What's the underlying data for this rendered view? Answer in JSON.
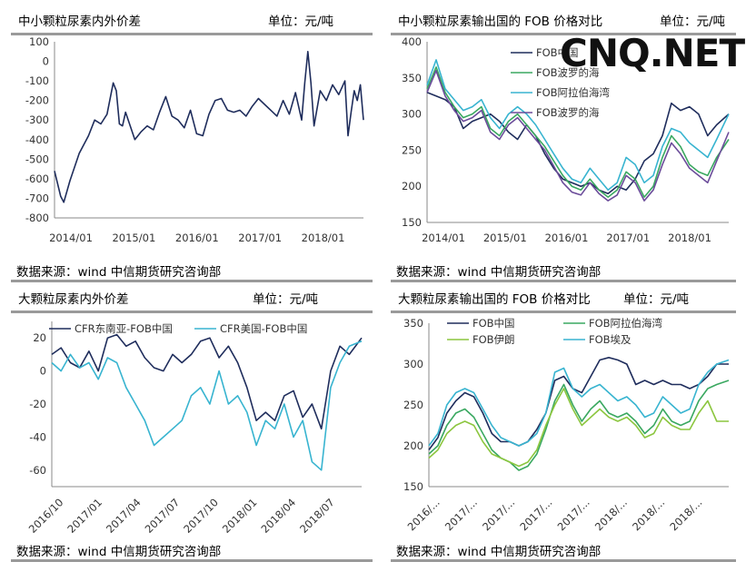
{
  "watermark": "CNQ.NET",
  "charts": [
    {
      "title": "中小颗粒尿素内外价差",
      "unit": "单位：元/吨",
      "source": "数据来源：wind  中信期货研究咨询部"
    },
    {
      "title": "中小颗粒尿素输出国的 FOB 价格对比",
      "unit": "单位：元/吨",
      "source": "数据来源：wind  中信期货研究咨询部"
    },
    {
      "title": "大颗粒尿素内外价差",
      "unit": "单位：元/吨",
      "source": "数据来源：wind  中信期货研究咨询部"
    },
    {
      "title": "大颗粒尿素输出国的 FOB 价格对比",
      "unit": "单位：元/吨",
      "source": "数据来源：wind  中信期货研究咨询部"
    }
  ],
  "chart_data": [
    {
      "type": "line",
      "ylim": [
        -800,
        100
      ],
      "yticks": [
        100,
        0,
        -100,
        -200,
        -300,
        -400,
        -500,
        -600,
        -700,
        -800
      ],
      "xticks": [
        "2014/01",
        "2015/01",
        "2016/01",
        "2017/01",
        "2018/01"
      ],
      "x": [
        0,
        0.02,
        0.03,
        0.05,
        0.08,
        0.11,
        0.13,
        0.15,
        0.17,
        0.19,
        0.2,
        0.21,
        0.22,
        0.23,
        0.26,
        0.28,
        0.3,
        0.32,
        0.34,
        0.36,
        0.38,
        0.4,
        0.42,
        0.44,
        0.46,
        0.48,
        0.5,
        0.52,
        0.54,
        0.56,
        0.58,
        0.6,
        0.62,
        0.64,
        0.66,
        0.68,
        0.7,
        0.72,
        0.74,
        0.76,
        0.78,
        0.8,
        0.81,
        0.82,
        0.83,
        0.84,
        0.86,
        0.88,
        0.9,
        0.92,
        0.94,
        0.95,
        0.96,
        0.97,
        0.98,
        0.99,
        1.0
      ],
      "series": [
        {
          "color": "#1f2d5c",
          "values": [
            -560,
            -690,
            -720,
            -610,
            -470,
            -380,
            -300,
            -320,
            -270,
            -110,
            -150,
            -320,
            -330,
            -260,
            -400,
            -360,
            -330,
            -350,
            -260,
            -180,
            -280,
            -300,
            -340,
            -250,
            -370,
            -380,
            -270,
            -200,
            -190,
            -250,
            -260,
            -250,
            -280,
            -230,
            -190,
            -220,
            -250,
            -280,
            -200,
            -270,
            -160,
            -300,
            -110,
            50,
            -110,
            -330,
            -150,
            -200,
            -120,
            -170,
            -100,
            -380,
            -260,
            -150,
            -200,
            -120,
            -300
          ]
        }
      ]
    },
    {
      "type": "line",
      "ylim": [
        150,
        400
      ],
      "yticks": [
        400,
        350,
        300,
        250,
        200,
        150
      ],
      "xticks": [
        "2014/01",
        "2015/01",
        "2016/01",
        "2017/01",
        "2018/01"
      ],
      "legend": [
        "FOB中国",
        "FOB波罗的海",
        "FOB阿拉伯海湾",
        "FOB波罗的海"
      ],
      "x": [
        0,
        0.03,
        0.06,
        0.09,
        0.12,
        0.15,
        0.18,
        0.21,
        0.24,
        0.27,
        0.3,
        0.33,
        0.36,
        0.39,
        0.42,
        0.45,
        0.48,
        0.51,
        0.54,
        0.57,
        0.6,
        0.63,
        0.66,
        0.69,
        0.72,
        0.75,
        0.78,
        0.81,
        0.84,
        0.87,
        0.9,
        0.93,
        0.96,
        1.0
      ],
      "series": [
        {
          "name": "FOB中国",
          "color": "#1f2d5c",
          "values": [
            330,
            325,
            320,
            310,
            280,
            290,
            295,
            300,
            290,
            275,
            265,
            285,
            270,
            245,
            225,
            210,
            205,
            200,
            205,
            195,
            190,
            200,
            195,
            210,
            235,
            245,
            270,
            315,
            305,
            310,
            300,
            270,
            285,
            300
          ]
        },
        {
          "name": "",
          "color": "#3aa860",
          "values": [
            335,
            365,
            330,
            310,
            295,
            300,
            310,
            280,
            270,
            290,
            300,
            285,
            270,
            255,
            235,
            215,
            200,
            195,
            210,
            195,
            185,
            195,
            220,
            210,
            185,
            200,
            240,
            270,
            255,
            230,
            220,
            215,
            240,
            265
          ]
        },
        {
          "name": "FOB阿拉伯海湾",
          "color": "#38b4d0",
          "values": [
            340,
            375,
            335,
            320,
            305,
            310,
            320,
            295,
            280,
            300,
            310,
            300,
            285,
            265,
            245,
            225,
            210,
            205,
            225,
            210,
            195,
            205,
            240,
            230,
            205,
            215,
            255,
            280,
            275,
            260,
            250,
            240,
            265,
            300
          ]
        },
        {
          "name": "FOB波罗的海",
          "color": "#6b4c9a",
          "values": [
            330,
            360,
            325,
            305,
            290,
            295,
            305,
            275,
            265,
            285,
            295,
            280,
            265,
            250,
            228,
            205,
            192,
            188,
            205,
            190,
            180,
            188,
            215,
            205,
            180,
            195,
            230,
            260,
            245,
            225,
            215,
            205,
            235,
            275
          ]
        }
      ]
    },
    {
      "type": "line",
      "ylim": [
        -70,
        30
      ],
      "yticks": [
        20,
        0,
        -20,
        -40,
        -60
      ],
      "xticks": [
        "2016/10",
        "2017/01",
        "2017/04",
        "2017/07",
        "2017/10",
        "2018/01",
        "2018/04",
        "2018/07"
      ],
      "legend": [
        "CFR东南亚-FOB中国",
        "CFR美国-FOB中国"
      ],
      "x": [
        0,
        0.03,
        0.06,
        0.09,
        0.12,
        0.15,
        0.18,
        0.21,
        0.24,
        0.27,
        0.3,
        0.33,
        0.36,
        0.39,
        0.42,
        0.45,
        0.48,
        0.51,
        0.54,
        0.57,
        0.6,
        0.63,
        0.66,
        0.69,
        0.72,
        0.75,
        0.78,
        0.81,
        0.84,
        0.87,
        0.9,
        0.93,
        0.96,
        1.0
      ],
      "series": [
        {
          "name": "CFR东南亚-FOB中国",
          "color": "#1f2d5c",
          "values": [
            10,
            14,
            5,
            2,
            12,
            0,
            20,
            22,
            15,
            18,
            8,
            2,
            0,
            10,
            5,
            10,
            18,
            20,
            8,
            15,
            5,
            -10,
            -30,
            -25,
            -30,
            -15,
            -12,
            -28,
            -20,
            -35,
            0,
            15,
            10,
            20
          ]
        },
        {
          "name": "CFR美国-FOB中国",
          "color": "#38b4d0",
          "values": [
            5,
            0,
            10,
            2,
            5,
            -5,
            8,
            5,
            -10,
            -20,
            -30,
            -45,
            -40,
            -35,
            -30,
            -15,
            -10,
            -20,
            0,
            -20,
            -15,
            -25,
            -45,
            -30,
            -35,
            -20,
            -40,
            -30,
            -55,
            -60,
            -10,
            5,
            15,
            18
          ]
        }
      ]
    },
    {
      "type": "line",
      "ylim": [
        150,
        350
      ],
      "yticks": [
        350,
        300,
        250,
        200,
        150
      ],
      "xticks": [
        "2016/...",
        "2017/...",
        "2017/...",
        "2017/...",
        "2017/...",
        "2018/...",
        "2018/...",
        "2018/..."
      ],
      "legend": [
        "FOB中国",
        "FOB阿拉伯海湾",
        "FOB伊朗",
        "FOB埃及"
      ],
      "x": [
        0,
        0.03,
        0.06,
        0.09,
        0.12,
        0.15,
        0.18,
        0.21,
        0.24,
        0.27,
        0.3,
        0.33,
        0.36,
        0.39,
        0.42,
        0.45,
        0.48,
        0.51,
        0.54,
        0.57,
        0.6,
        0.63,
        0.66,
        0.69,
        0.72,
        0.75,
        0.78,
        0.81,
        0.84,
        0.87,
        0.9,
        0.93,
        0.96,
        1.0
      ],
      "series": [
        {
          "name": "FOB中国",
          "color": "#1f2d5c",
          "values": [
            195,
            210,
            240,
            255,
            265,
            260,
            240,
            215,
            205,
            205,
            200,
            205,
            220,
            240,
            280,
            285,
            270,
            265,
            285,
            305,
            308,
            305,
            300,
            275,
            280,
            275,
            280,
            275,
            275,
            270,
            275,
            285,
            300,
            300
          ]
        },
        {
          "name": "FOB阿拉伯海湾",
          "color": "#3aa860",
          "values": [
            190,
            200,
            225,
            240,
            245,
            235,
            215,
            195,
            185,
            180,
            170,
            175,
            190,
            220,
            255,
            275,
            250,
            230,
            245,
            255,
            240,
            235,
            240,
            230,
            215,
            225,
            245,
            230,
            225,
            230,
            255,
            270,
            275,
            280
          ]
        },
        {
          "name": "FOB伊朗",
          "color": "#8cc63f",
          "values": [
            185,
            195,
            215,
            225,
            230,
            225,
            205,
            190,
            185,
            180,
            175,
            180,
            195,
            225,
            250,
            270,
            245,
            225,
            235,
            245,
            235,
            230,
            235,
            225,
            210,
            215,
            235,
            225,
            220,
            220,
            240,
            255,
            230,
            230
          ]
        },
        {
          "name": "FOB埃及",
          "color": "#38b4d0",
          "values": [
            200,
            215,
            250,
            265,
            270,
            265,
            245,
            225,
            210,
            205,
            200,
            205,
            215,
            240,
            290,
            295,
            270,
            260,
            270,
            275,
            265,
            255,
            260,
            250,
            235,
            240,
            260,
            250,
            240,
            245,
            275,
            290,
            300,
            305
          ]
        }
      ]
    }
  ]
}
